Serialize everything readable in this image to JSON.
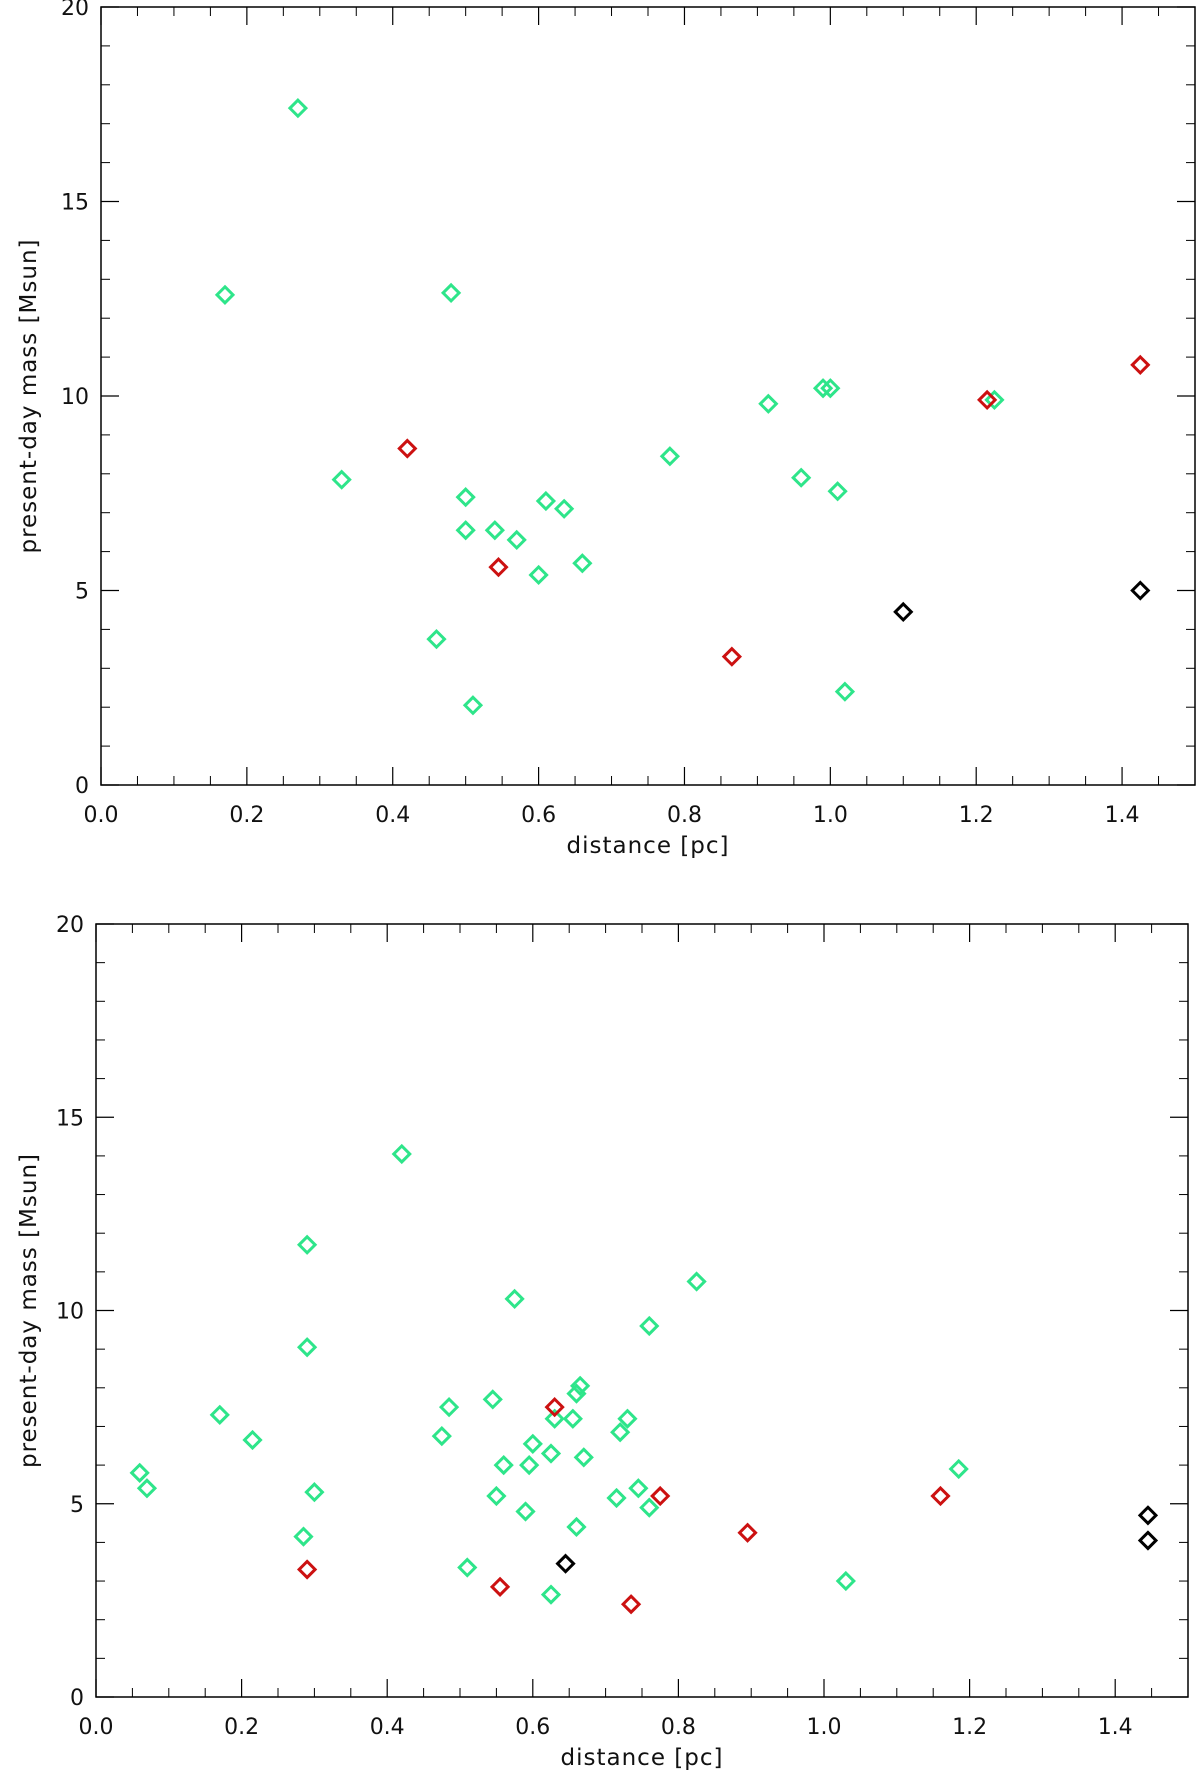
{
  "chart_data": [
    {
      "type": "scatter",
      "title": "",
      "xlabel": "distance [pc]",
      "ylabel": "present-day mass [Msun]",
      "xlim": [
        0.0,
        1.5
      ],
      "ylim": [
        0,
        20
      ],
      "xticks": [
        "0.0",
        "0.2",
        "0.4",
        "0.6",
        "0.8",
        "1.0",
        "1.2",
        "1.4"
      ],
      "yticks": [
        "0",
        "5",
        "10",
        "15",
        "20"
      ],
      "marker": "open-diamond",
      "grid": false,
      "legend": "none",
      "series": [
        {
          "color": "#2ee58a",
          "points": [
            [
              0.17,
              12.6
            ],
            [
              0.27,
              17.4
            ],
            [
              0.33,
              7.85
            ],
            [
              0.46,
              3.75
            ],
            [
              0.48,
              12.65
            ],
            [
              0.5,
              7.4
            ],
            [
              0.5,
              6.55
            ],
            [
              0.51,
              2.05
            ],
            [
              0.54,
              6.55
            ],
            [
              0.57,
              6.3
            ],
            [
              0.6,
              5.4
            ],
            [
              0.61,
              7.3
            ],
            [
              0.635,
              7.1
            ],
            [
              0.66,
              5.7
            ],
            [
              0.78,
              8.45
            ],
            [
              0.915,
              9.8
            ],
            [
              0.96,
              7.9
            ],
            [
              0.99,
              10.2
            ],
            [
              1.0,
              10.2
            ],
            [
              1.01,
              7.55
            ],
            [
              1.02,
              2.4
            ],
            [
              1.225,
              9.9
            ]
          ]
        },
        {
          "color": "#cc1111",
          "points": [
            [
              0.42,
              8.65
            ],
            [
              0.545,
              5.6
            ],
            [
              0.865,
              3.3
            ],
            [
              1.215,
              9.9
            ],
            [
              1.425,
              10.8
            ]
          ]
        },
        {
          "color": "#000000",
          "points": [
            [
              1.1,
              4.45
            ],
            [
              1.425,
              5.0
            ]
          ]
        }
      ]
    },
    {
      "type": "scatter",
      "title": "",
      "xlabel": "distance [pc]",
      "ylabel": "present-day mass [Msun]",
      "xlim": [
        0.0,
        1.5
      ],
      "ylim": [
        0,
        20
      ],
      "xticks": [
        "0.0",
        "0.2",
        "0.4",
        "0.6",
        "0.8",
        "1.0",
        "1.2",
        "1.4"
      ],
      "yticks": [
        "0",
        "5",
        "10",
        "15",
        "20"
      ],
      "marker": "open-diamond",
      "grid": false,
      "legend": "none",
      "series": [
        {
          "color": "#2ee58a",
          "points": [
            [
              0.06,
              5.8
            ],
            [
              0.07,
              5.4
            ],
            [
              0.17,
              7.3
            ],
            [
              0.215,
              6.65
            ],
            [
              0.285,
              4.15
            ],
            [
              0.29,
              9.05
            ],
            [
              0.29,
              11.7
            ],
            [
              0.3,
              5.3
            ],
            [
              0.42,
              14.05
            ],
            [
              0.475,
              6.75
            ],
            [
              0.485,
              7.5
            ],
            [
              0.51,
              3.35
            ],
            [
              0.545,
              7.7
            ],
            [
              0.55,
              5.2
            ],
            [
              0.56,
              6.0
            ],
            [
              0.575,
              10.3
            ],
            [
              0.59,
              4.8
            ],
            [
              0.595,
              6.0
            ],
            [
              0.6,
              6.55
            ],
            [
              0.625,
              6.3
            ],
            [
              0.625,
              2.65
            ],
            [
              0.63,
              7.2
            ],
            [
              0.655,
              7.2
            ],
            [
              0.66,
              7.85
            ],
            [
              0.66,
              4.4
            ],
            [
              0.665,
              8.05
            ],
            [
              0.67,
              6.2
            ],
            [
              0.715,
              5.15
            ],
            [
              0.72,
              6.85
            ],
            [
              0.73,
              7.2
            ],
            [
              0.745,
              5.4
            ],
            [
              0.76,
              4.9
            ],
            [
              0.76,
              9.6
            ],
            [
              0.825,
              10.75
            ],
            [
              1.03,
              3.0
            ],
            [
              1.185,
              5.9
            ]
          ]
        },
        {
          "color": "#cc1111",
          "points": [
            [
              0.29,
              3.3
            ],
            [
              0.555,
              2.85
            ],
            [
              0.63,
              7.5
            ],
            [
              0.735,
              2.4
            ],
            [
              0.775,
              5.2
            ],
            [
              0.895,
              4.25
            ],
            [
              1.16,
              5.2
            ]
          ]
        },
        {
          "color": "#000000",
          "points": [
            [
              0.645,
              3.45
            ],
            [
              1.445,
              4.7
            ],
            [
              1.445,
              4.05
            ]
          ]
        }
      ]
    }
  ]
}
